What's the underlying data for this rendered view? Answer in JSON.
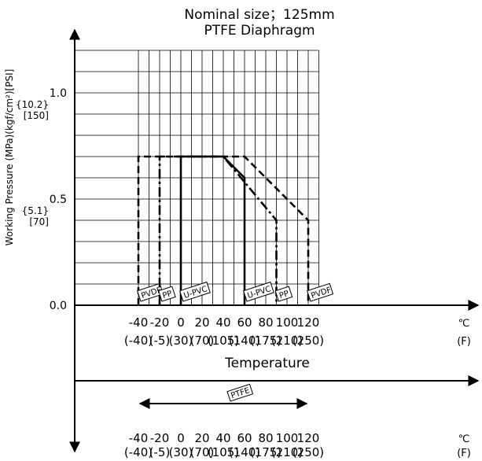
{
  "chart_data": {
    "type": "line",
    "title": "Nominal size；125mm",
    "subtitle": "PTFE Diaphragm",
    "ylabel": "Working Pressure (MPa)(kgf/cm²)[PSI]",
    "xlabel": "Temperature",
    "x_unit_c": "℃",
    "x_unit_f": "(F)",
    "x_ticks_c": [
      "-40",
      "-20",
      "0",
      "20",
      "40",
      "60",
      "80",
      "100",
      "120"
    ],
    "x_ticks_f": [
      "(-40)",
      "(-5)",
      "(30)",
      "(70)",
      "(105)",
      "(140)",
      "(175)",
      "(210)",
      "(250)"
    ],
    "xlim": [
      -50,
      130
    ],
    "ylim": [
      0,
      1.2
    ],
    "y_ticks": [
      {
        "value": 0.0,
        "mpa": "0.0",
        "kgf": "",
        "psi": ""
      },
      {
        "value": 0.5,
        "mpa": "0.5",
        "kgf": "{5.1}",
        "psi": "[70]"
      },
      {
        "value": 1.0,
        "mpa": "1.0",
        "kgf": "{10.2}",
        "psi": "[150]"
      }
    ],
    "grid": true,
    "series": [
      {
        "name": "PVDF",
        "style": "dash",
        "points": [
          [
            -40,
            0
          ],
          [
            -40,
            0.7
          ],
          [
            60,
            0.7
          ],
          [
            120,
            0.4
          ],
          [
            120,
            0
          ]
        ],
        "label_min": "PVDF",
        "label_max": "PVDF"
      },
      {
        "name": "PP",
        "style": "dashdot",
        "points": [
          [
            -20,
            0
          ],
          [
            -20,
            0.7
          ],
          [
            40,
            0.7
          ],
          [
            90,
            0.4
          ],
          [
            90,
            0
          ]
        ],
        "label_min": "PP",
        "label_max": "PP"
      },
      {
        "name": "U-PVC",
        "style": "solid",
        "points": [
          [
            0,
            0
          ],
          [
            0,
            0.7
          ],
          [
            40,
            0.7
          ],
          [
            60,
            0.6
          ],
          [
            60,
            0
          ]
        ],
        "label_min": "U-PVC",
        "label_max": "U-PVC"
      }
    ],
    "range_bar": {
      "name": "PTFE",
      "from": -40,
      "to": 120
    }
  }
}
